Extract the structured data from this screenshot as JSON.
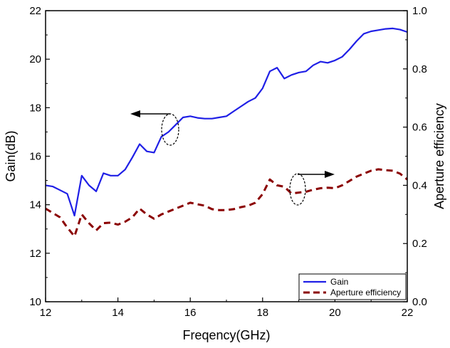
{
  "chart_data": {
    "type": "line",
    "xlabel": "Freqency(GHz)",
    "ylabel": "Gain(dB)",
    "y2label": "Aperture efficiency",
    "xlim": [
      12,
      22
    ],
    "ylim": [
      10,
      22
    ],
    "y2lim": [
      0.0,
      1.0
    ],
    "xticks": [
      "12",
      "14",
      "16",
      "18",
      "20",
      "22"
    ],
    "xtick_values": [
      12,
      14,
      16,
      18,
      20,
      22
    ],
    "yticks": [
      "10",
      "12",
      "14",
      "16",
      "18",
      "20",
      "22"
    ],
    "ytick_values": [
      10,
      12,
      14,
      16,
      18,
      20,
      22
    ],
    "y2ticks": [
      "0.0",
      "0.2",
      "0.4",
      "0.6",
      "0.8",
      "1.0"
    ],
    "y2tick_values": [
      0.0,
      0.2,
      0.4,
      0.6,
      0.8,
      1.0
    ],
    "grid": false,
    "legend_position": "bottom-right",
    "series": [
      {
        "name": "Gain",
        "axis": "left",
        "color": "#1f1fe6",
        "style": "solid",
        "x": [
          12.0,
          12.2,
          12.4,
          12.6,
          12.8,
          13.0,
          13.2,
          13.4,
          13.6,
          13.8,
          14.0,
          14.2,
          14.4,
          14.6,
          14.8,
          15.0,
          15.2,
          15.4,
          15.6,
          15.8,
          16.0,
          16.2,
          16.4,
          16.6,
          16.8,
          17.0,
          17.2,
          17.4,
          17.6,
          17.8,
          18.0,
          18.2,
          18.4,
          18.6,
          18.8,
          19.0,
          19.2,
          19.4,
          19.6,
          19.8,
          20.0,
          20.2,
          20.4,
          20.6,
          20.8,
          21.0,
          21.2,
          21.4,
          21.6,
          21.8,
          22.0
        ],
        "values": [
          14.8,
          14.75,
          14.6,
          14.45,
          13.55,
          15.2,
          14.8,
          14.55,
          15.3,
          15.2,
          15.2,
          15.45,
          15.95,
          16.5,
          16.2,
          16.15,
          16.8,
          17.0,
          17.3,
          17.6,
          17.65,
          17.58,
          17.55,
          17.55,
          17.6,
          17.65,
          17.85,
          18.05,
          18.25,
          18.4,
          18.8,
          19.5,
          19.65,
          19.2,
          19.35,
          19.45,
          19.5,
          19.75,
          19.9,
          19.85,
          19.95,
          20.1,
          20.4,
          20.75,
          21.05,
          21.15,
          21.2,
          21.25,
          21.27,
          21.22,
          21.12
        ]
      },
      {
        "name": "Aperture efficiency",
        "axis": "right",
        "color": "#8b0000",
        "style": "dashed",
        "x": [
          12.0,
          12.2,
          12.4,
          12.6,
          12.8,
          13.0,
          13.2,
          13.4,
          13.6,
          13.8,
          14.0,
          14.2,
          14.4,
          14.6,
          14.8,
          15.0,
          15.2,
          15.4,
          15.6,
          15.8,
          16.0,
          16.2,
          16.4,
          16.6,
          16.8,
          17.0,
          17.2,
          17.4,
          17.6,
          17.8,
          18.0,
          18.2,
          18.4,
          18.6,
          18.8,
          19.0,
          19.2,
          19.4,
          19.6,
          19.8,
          20.0,
          20.2,
          20.4,
          20.6,
          20.8,
          21.0,
          21.2,
          21.4,
          21.6,
          21.8,
          22.0
        ],
        "values": [
          0.32,
          0.305,
          0.29,
          0.255,
          0.225,
          0.3,
          0.27,
          0.245,
          0.27,
          0.272,
          0.265,
          0.275,
          0.29,
          0.32,
          0.3,
          0.285,
          0.3,
          0.31,
          0.32,
          0.33,
          0.34,
          0.335,
          0.33,
          0.318,
          0.315,
          0.315,
          0.318,
          0.325,
          0.33,
          0.34,
          0.37,
          0.42,
          0.4,
          0.395,
          0.372,
          0.375,
          0.378,
          0.385,
          0.39,
          0.392,
          0.39,
          0.4,
          0.415,
          0.43,
          0.44,
          0.45,
          0.455,
          0.452,
          0.45,
          0.44,
          0.42
        ]
      }
    ]
  }
}
